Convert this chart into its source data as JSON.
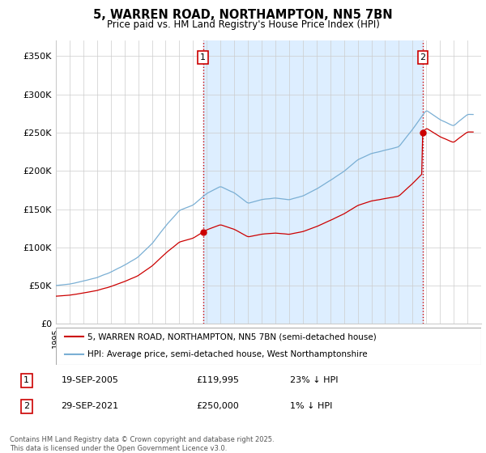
{
  "title_line1": "5, WARREN ROAD, NORTHAMPTON, NN5 7BN",
  "title_line2": "Price paid vs. HM Land Registry's House Price Index (HPI)",
  "ylim": [
    0,
    370000
  ],
  "yticks": [
    0,
    50000,
    100000,
    150000,
    200000,
    250000,
    300000,
    350000
  ],
  "ytick_labels": [
    "£0",
    "£50K",
    "£100K",
    "£150K",
    "£200K",
    "£250K",
    "£300K",
    "£350K"
  ],
  "sale1_x": 2005.72,
  "sale1_price": 119995,
  "sale1_date": "19-SEP-2005",
  "sale1_label": "23% ↓ HPI",
  "sale2_x": 2021.74,
  "sale2_price": 250000,
  "sale2_date": "29-SEP-2021",
  "sale2_label": "1% ↓ HPI",
  "line_color_property": "#cc0000",
  "line_color_hpi": "#7aafd4",
  "shade_color": "#ddeeff",
  "vline_color": "#cc0000",
  "background_color": "#ffffff",
  "grid_color": "#cccccc",
  "legend_label1": "5, WARREN ROAD, NORTHAMPTON, NN5 7BN (semi-detached house)",
  "legend_label2": "HPI: Average price, semi-detached house, West Northamptonshire",
  "footer": "Contains HM Land Registry data © Crown copyright and database right 2025.\nThis data is licensed under the Open Government Licence v3.0.",
  "xmin": 1995,
  "xmax": 2026
}
